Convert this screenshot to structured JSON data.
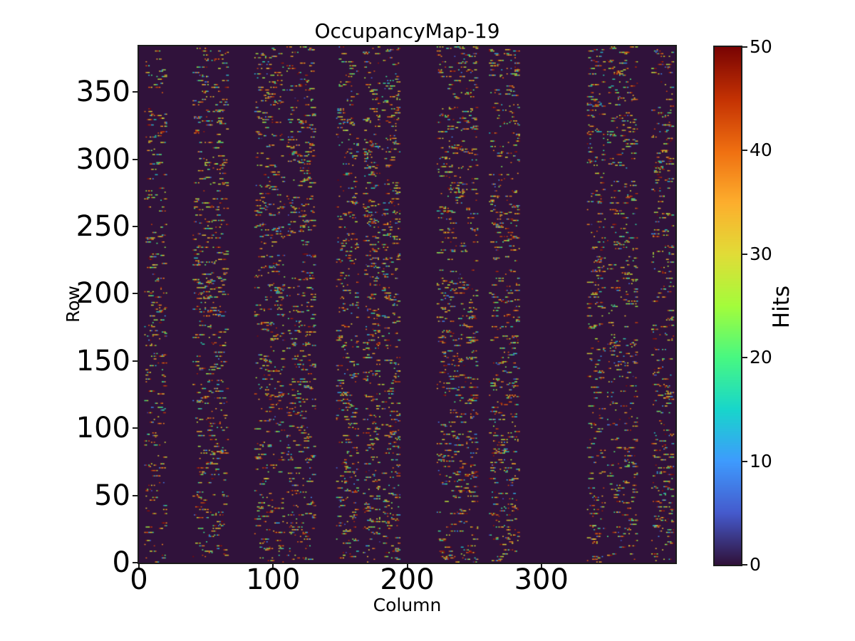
{
  "figure": {
    "background_color": "#ffffff",
    "text_color": "#000000"
  },
  "chart_data": {
    "type": "heatmap",
    "title": "OccupancyMap-19",
    "xlabel": "Column",
    "ylabel": "Row",
    "colorbar_label": "Hits",
    "colormap": "turbo",
    "vmin": 0,
    "vmax": 50,
    "n_cols": 400,
    "n_rows": 384,
    "xlim": [
      0,
      400
    ],
    "ylim": [
      0,
      384
    ],
    "x_ticks": [
      0,
      100,
      200,
      300
    ],
    "y_ticks": [
      0,
      50,
      100,
      150,
      200,
      250,
      300,
      350
    ],
    "colorbar_ticks": [
      0,
      10,
      20,
      30,
      40,
      50
    ],
    "zero_value_color": "#30123b",
    "max_value_color": "#7a0403",
    "hit_pattern": {
      "seed": 19,
      "description": "random hit values 1-50 (skewed toward high/red) scattered as short horizontal runs inside vertical column bands; all other pixels have 0 hits",
      "value_skew_exponent": 0.65,
      "active_column_bands": [
        {
          "cols": [
            4,
            20
          ],
          "density": 0.42
        },
        {
          "cols": [
            40,
            66
          ],
          "density": 0.62
        },
        {
          "cols": [
            86,
            108
          ],
          "density": 0.6
        },
        {
          "cols": [
            110,
            131
          ],
          "density": 0.6
        },
        {
          "cols": [
            147,
            163
          ],
          "density": 0.55
        },
        {
          "cols": [
            167,
            179
          ],
          "density": 0.55
        },
        {
          "cols": [
            181,
            194
          ],
          "density": 0.55
        },
        {
          "cols": [
            222,
            252
          ],
          "density": 0.62
        },
        {
          "cols": [
            261,
            283
          ],
          "density": 0.58
        },
        {
          "cols": [
            334,
            347
          ],
          "density": 0.45
        },
        {
          "cols": [
            349,
            371
          ],
          "density": 0.55
        },
        {
          "cols": [
            382,
            398
          ],
          "density": 0.55
        }
      ]
    }
  }
}
